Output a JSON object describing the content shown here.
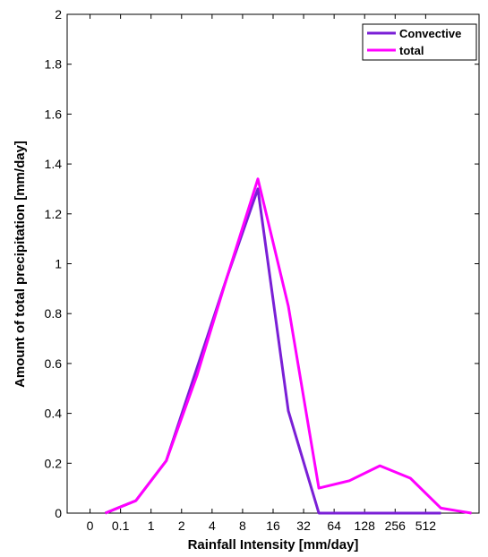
{
  "chart_data": {
    "type": "line",
    "xlabel": "Rainfall Intensity [mm/day]",
    "ylabel": "Amount of total precipitation [mm/day]",
    "x_tick_labels": [
      "0",
      "0.1",
      "1",
      "2",
      "4",
      "8",
      "16",
      "32",
      "64",
      "128",
      "256",
      "512"
    ],
    "y_ticks": [
      0,
      0.2,
      0.4,
      0.6,
      0.8,
      1,
      1.2,
      1.4,
      1.6,
      1.8,
      2
    ],
    "y_tick_labels": [
      "0",
      "0.2",
      "0.4",
      "0.6",
      "0.8",
      "1",
      "1.2",
      "1.4",
      "1.6",
      "1.8",
      "2"
    ],
    "xlim": [
      -0.75,
      12.75
    ],
    "ylim": [
      0,
      2
    ],
    "grid": false,
    "legend_position": "top-right",
    "series": [
      {
        "name": "Convective",
        "color": "#7a1fd6",
        "points": [
          [
            0.5,
            0.0
          ],
          [
            1.5,
            0.05
          ],
          [
            2.5,
            0.21
          ],
          [
            3.5,
            0.58
          ],
          [
            4.5,
            0.95
          ],
          [
            5.5,
            1.3
          ],
          [
            6.5,
            0.41
          ],
          [
            7.5,
            0.0
          ],
          [
            8.5,
            0.0
          ],
          [
            9.5,
            0.0
          ],
          [
            10.5,
            0.0
          ],
          [
            11.5,
            0.0
          ]
        ]
      },
      {
        "name": "total",
        "color": "#ff00ff",
        "points": [
          [
            0.5,
            0.0
          ],
          [
            1.5,
            0.05
          ],
          [
            2.5,
            0.21
          ],
          [
            3.5,
            0.55
          ],
          [
            4.5,
            0.95
          ],
          [
            5.5,
            1.34
          ],
          [
            6.5,
            0.83
          ],
          [
            7.5,
            0.1
          ],
          [
            8.5,
            0.13
          ],
          [
            9.5,
            0.19
          ],
          [
            10.5,
            0.14
          ],
          [
            11.5,
            0.02
          ],
          [
            12.5,
            0.0
          ]
        ]
      }
    ]
  }
}
